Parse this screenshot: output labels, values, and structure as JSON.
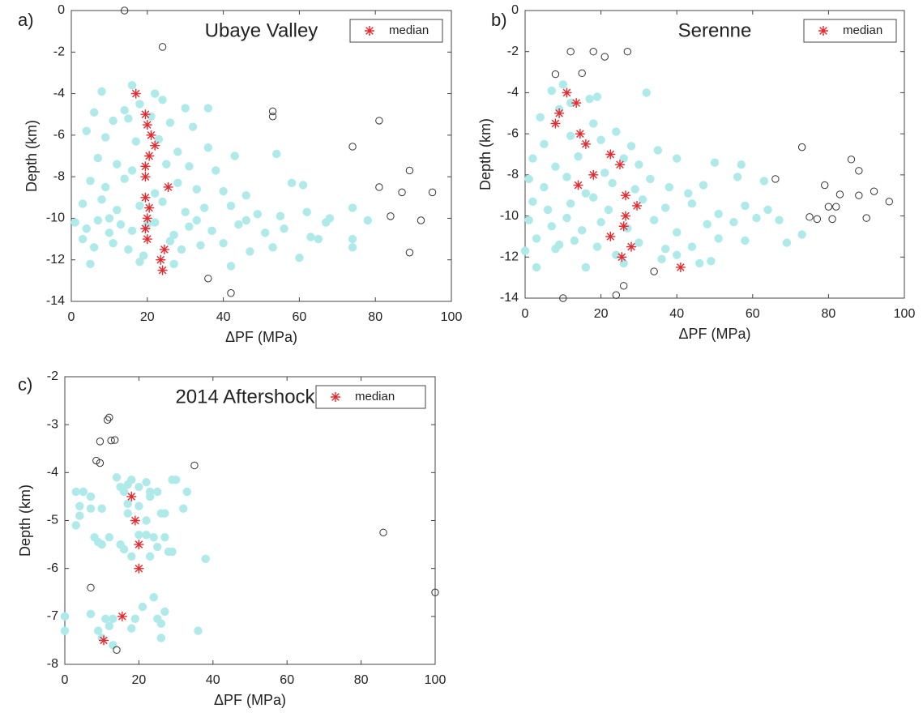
{
  "chart_data": [
    {
      "type": "scatter",
      "panel_label": "a)",
      "title": "Ubaye Valley",
      "xlabel": "ΔPF (MPa)",
      "ylabel": "Depth (km)",
      "xlim": [
        0,
        100
      ],
      "ylim": [
        -14,
        0
      ],
      "xticks": [
        0,
        20,
        40,
        60,
        80,
        100
      ],
      "yticks": [
        0,
        -2,
        -4,
        -6,
        -8,
        -10,
        -12,
        -14
      ],
      "grid": false,
      "legend": "upper right",
      "series": [
        {
          "marker": "filled",
          "color": "#aeeaea",
          "x": [
            16,
            22,
            8,
            14,
            18,
            24,
            30,
            36,
            6,
            11,
            15,
            21,
            26,
            32,
            4,
            9,
            17,
            23,
            28,
            36,
            43,
            54,
            7,
            12,
            16,
            25,
            31,
            38,
            5,
            9,
            14,
            22,
            28,
            33,
            40,
            46,
            58,
            61,
            3,
            8,
            12,
            18,
            24,
            30,
            35,
            42,
            49,
            55,
            62,
            68,
            74,
            78,
            1,
            4,
            7,
            10,
            13,
            16,
            22,
            27,
            31,
            37,
            44,
            51,
            56,
            63,
            67,
            3,
            6,
            11,
            15,
            19,
            26,
            29,
            34,
            40,
            47,
            53,
            60,
            74,
            5,
            18,
            27,
            42,
            74,
            65,
            10,
            20,
            33,
            46
          ],
          "values": [
            -3.6,
            -4,
            -3.9,
            -4.8,
            -4.5,
            -4.3,
            -4.7,
            -4.7,
            -4.9,
            -5.3,
            -5.2,
            -5.1,
            -5.4,
            -5.6,
            -5.8,
            -6.1,
            -6.3,
            -6.2,
            -6.8,
            -6.6,
            -7,
            -6.9,
            -7.1,
            -7.4,
            -7.7,
            -7.4,
            -7.5,
            -7.7,
            -8.2,
            -8.5,
            -8.1,
            -8.8,
            -8.3,
            -8.6,
            -8.7,
            -8.9,
            -8.3,
            -8.4,
            -9.3,
            -9.1,
            -9.6,
            -9.4,
            -9.2,
            -9.7,
            -9.5,
            -9.4,
            -9.8,
            -9.9,
            -9.7,
            -10,
            -9.5,
            -10.1,
            -10.2,
            -10.5,
            -10.1,
            -10.7,
            -10.3,
            -10.6,
            -10.2,
            -10.8,
            -10.4,
            -10.6,
            -10.3,
            -10.7,
            -10.5,
            -10.9,
            -10.2,
            -11,
            -11.4,
            -11.2,
            -11.5,
            -11.8,
            -11.1,
            -11.5,
            -11.3,
            -11.2,
            -11.6,
            -11.4,
            -11.9,
            -11.4,
            -12.2,
            -12.1,
            -12.2,
            -12.3,
            -11,
            -11,
            -10,
            -10.3,
            -10.1,
            -10.1
          ]
        },
        {
          "marker": "open",
          "color": "#333333",
          "x": [
            14,
            24,
            53,
            53,
            81,
            74,
            89,
            81,
            87,
            95,
            84,
            92,
            89,
            36,
            42
          ],
          "values": [
            0,
            -1.75,
            -4.85,
            -5.1,
            -5.3,
            -6.55,
            -7.7,
            -8.5,
            -8.75,
            -8.75,
            -9.9,
            -10.1,
            -11.65,
            -12.9,
            -13.6
          ]
        },
        {
          "name": "median",
          "marker": "asterisk",
          "color": "#e8282e",
          "x": [
            17,
            19.5,
            20,
            21,
            22,
            20.5,
            19.5,
            19.5,
            25.5,
            19.5,
            20.5,
            20,
            19.5,
            20,
            24.5,
            23.5,
            24
          ],
          "values": [
            -4,
            -5,
            -5.5,
            -6,
            -6.5,
            -7,
            -7.5,
            -8,
            -8.5,
            -9,
            -9.5,
            -10,
            -10.5,
            -11,
            -11.5,
            -12,
            -12.5
          ]
        }
      ]
    },
    {
      "type": "scatter",
      "panel_label": "b)",
      "title": "Serenne",
      "xlabel": "ΔPF (MPa)",
      "ylabel": "Depth (km)",
      "xlim": [
        0,
        100
      ],
      "ylim": [
        -14,
        0
      ],
      "xticks": [
        0,
        20,
        40,
        60,
        80,
        100
      ],
      "yticks": [
        0,
        -2,
        -4,
        -6,
        -8,
        -10,
        -12,
        -14
      ],
      "grid": false,
      "legend": "upper right",
      "series": [
        {
          "marker": "filled",
          "color": "#aeeaea",
          "x": [
            10,
            7,
            12,
            17,
            4,
            9,
            18,
            19,
            32,
            5,
            12,
            20,
            24,
            28,
            2,
            8,
            14,
            21,
            26,
            30,
            35,
            40,
            50,
            57,
            1,
            5,
            11,
            16,
            23,
            29,
            33,
            38,
            43,
            47,
            56,
            63,
            2,
            6,
            12,
            18,
            22,
            31,
            37,
            44,
            51,
            58,
            64,
            1,
            7,
            11,
            15,
            20,
            27,
            34,
            40,
            48,
            55,
            61,
            67,
            73,
            3,
            9,
            13,
            19,
            24,
            30,
            37,
            44,
            51,
            58,
            69,
            0,
            8,
            16,
            3,
            26,
            40,
            46,
            49,
            36
          ],
          "values": [
            -3.6,
            -3.9,
            -4.5,
            -4.3,
            -5.2,
            -4.8,
            -5.5,
            -4.2,
            -4,
            -6.5,
            -6.1,
            -6.3,
            -5.9,
            -6.6,
            -7.2,
            -7.6,
            -7.1,
            -7.9,
            -7.2,
            -7.5,
            -6.8,
            -7.2,
            -7.4,
            -7.5,
            -8.2,
            -8.6,
            -8.1,
            -8.9,
            -8.4,
            -8.7,
            -8.2,
            -8.6,
            -8.9,
            -8.5,
            -8.1,
            -8.3,
            -9.3,
            -9.7,
            -9.4,
            -9.1,
            -9.7,
            -9.2,
            -9.6,
            -9.4,
            -9.9,
            -9.5,
            -9.7,
            -10.2,
            -10.5,
            -10.1,
            -10.7,
            -10.3,
            -10.6,
            -10.2,
            -10.8,
            -10.4,
            -10.3,
            -10.1,
            -10.2,
            -10.9,
            -11.1,
            -11.4,
            -11.2,
            -11.5,
            -11.9,
            -11.3,
            -11.6,
            -11.5,
            -11.1,
            -11.2,
            -11.3,
            -11.7,
            -11.6,
            -12.5,
            -12.5,
            -12.3,
            -11.9,
            -12.3,
            -12.2,
            -12.1
          ]
        },
        {
          "marker": "open",
          "color": "#333333",
          "x": [
            12,
            18,
            27,
            21,
            8,
            15,
            73,
            66,
            86,
            88,
            79,
            83,
            88,
            92,
            96,
            80,
            82,
            75,
            77,
            81,
            90,
            34,
            26,
            24,
            10
          ],
          "values": [
            -2,
            -2,
            -2,
            -2.25,
            -3.1,
            -3.05,
            -6.65,
            -8.2,
            -7.25,
            -7.8,
            -8.5,
            -8.95,
            -9,
            -8.8,
            -9.3,
            -9.55,
            -9.55,
            -10.05,
            -10.15,
            -10.15,
            -10.1,
            -12.7,
            -13.4,
            -13.85,
            -14
          ]
        },
        {
          "name": "median",
          "marker": "asterisk",
          "color": "#e8282e",
          "x": [
            11,
            13.5,
            9,
            8,
            14.5,
            16,
            22.5,
            25,
            18,
            14,
            26.5,
            29.5,
            26.5,
            26,
            22.5,
            28,
            25.5,
            41
          ],
          "values": [
            -4,
            -4.5,
            -5,
            -5.5,
            -6,
            -6.5,
            -7,
            -7.5,
            -8,
            -8.5,
            -9,
            -9.5,
            -10,
            -10.5,
            -11,
            -11.5,
            -12,
            -12.5
          ]
        }
      ]
    },
    {
      "type": "scatter",
      "panel_label": "c)",
      "title": "2014 Aftershocks",
      "xlabel": "ΔPF (MPa)",
      "ylabel": "Depth (km)",
      "xlim": [
        0,
        100
      ],
      "ylim": [
        -8,
        -2
      ],
      "xticks": [
        0,
        20,
        40,
        60,
        80,
        100
      ],
      "yticks": [
        -2,
        -3,
        -4,
        -5,
        -6,
        -7,
        -8
      ],
      "grid": false,
      "legend": "upper right",
      "series": [
        {
          "marker": "filled",
          "color": "#aeeaea",
          "x": [
            3,
            5,
            7,
            4,
            4,
            3,
            7,
            10,
            14,
            15,
            17,
            18,
            20,
            22,
            23,
            25,
            29,
            30,
            33,
            32,
            16,
            17,
            20,
            23,
            26,
            27,
            17,
            22,
            8,
            9,
            10,
            12,
            15,
            16,
            18,
            20,
            22,
            24,
            25,
            27,
            28,
            29,
            23,
            38,
            0,
            0,
            7,
            9,
            10,
            11,
            13,
            12,
            18,
            19,
            21,
            24,
            25,
            27,
            26,
            26,
            36,
            13
          ],
          "values": [
            -4.4,
            -4.4,
            -4.5,
            -4.7,
            -4.9,
            -5.1,
            -4.75,
            -4.75,
            -4.1,
            -4.3,
            -4.25,
            -4.15,
            -4.3,
            -4.2,
            -4.4,
            -4.4,
            -4.15,
            -4.15,
            -4.4,
            -4.75,
            -4.4,
            -4.65,
            -4.7,
            -4.5,
            -4.85,
            -4.85,
            -4.85,
            -5,
            -5.35,
            -5.45,
            -5.5,
            -5.35,
            -5.5,
            -5.6,
            -5.75,
            -5.3,
            -5.3,
            -5.35,
            -5.55,
            -5.35,
            -5.65,
            -5.65,
            -5.75,
            -5.8,
            -7,
            -7.3,
            -6.95,
            -7.3,
            -7.45,
            -7.05,
            -7.05,
            -7.2,
            -7.25,
            -7.05,
            -6.8,
            -6.6,
            -7.05,
            -6.9,
            -7.15,
            -7.45,
            -7.3,
            -7.6
          ]
        },
        {
          "marker": "open",
          "color": "#333333",
          "x": [
            12,
            11.5,
            9.5,
            12.5,
            13.5,
            8.5,
            9.5,
            35,
            86,
            7,
            100,
            14
          ],
          "values": [
            -2.85,
            -2.9,
            -3.35,
            -3.33,
            -3.32,
            -3.75,
            -3.8,
            -3.85,
            -5.25,
            -6.4,
            -6.5,
            -7.7
          ]
        },
        {
          "name": "median",
          "marker": "asterisk",
          "color": "#e8282e",
          "x": [
            18,
            19,
            20,
            20,
            15.5,
            10.5
          ],
          "values": [
            -4.5,
            -5,
            -5.5,
            -6,
            -7,
            -7.5
          ]
        }
      ]
    }
  ]
}
